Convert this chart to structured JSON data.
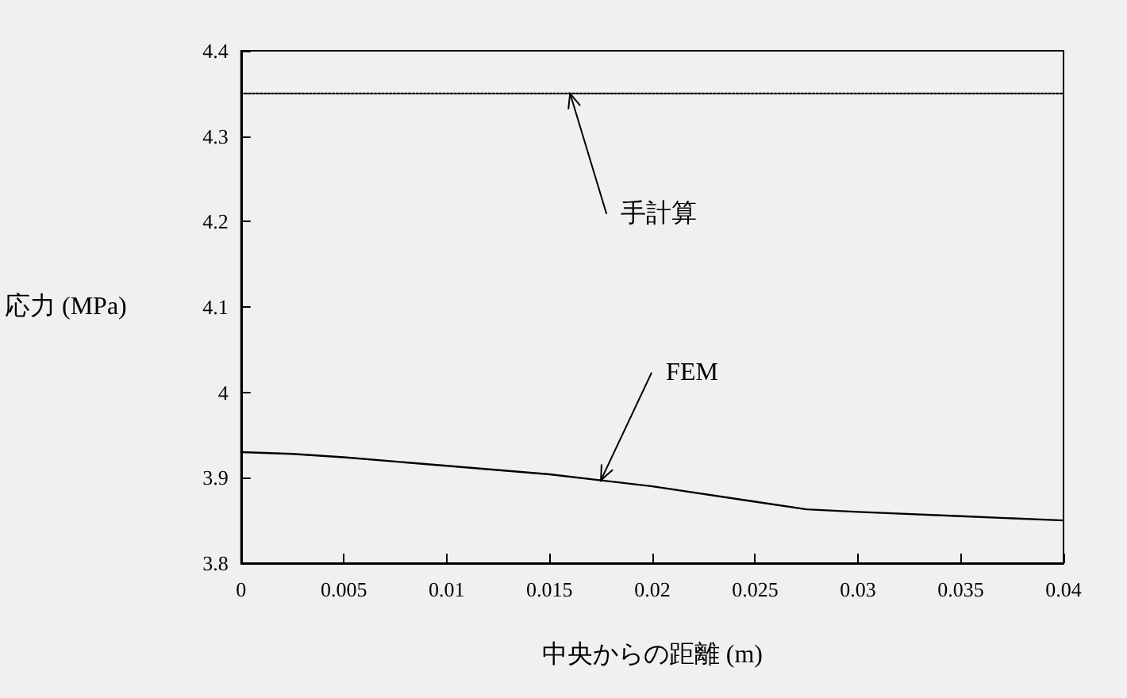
{
  "chart_data": {
    "type": "line",
    "xlabel": "中央からの距離 (m)",
    "ylabel": "応力 (MPa)",
    "xlim": [
      0,
      0.04
    ],
    "xticks": [
      0,
      0.005,
      0.01,
      0.015,
      0.02,
      0.025,
      0.03,
      0.035,
      0.04
    ],
    "ylim": [
      3.8,
      4.4
    ],
    "yticks": [
      3.8,
      3.9,
      4,
      4.1,
      4.2,
      4.3,
      4.4
    ],
    "series": [
      {
        "color": "#000000",
        "x": [
          0,
          0.0025,
          0.005,
          0.01,
          0.015,
          0.02,
          0.025,
          0.0275,
          0.03,
          0.035,
          0.04
        ],
        "values": [
          3.93,
          3.928,
          3.924,
          3.914,
          3.904,
          3.89,
          3.872,
          3.863,
          3.86,
          3.855,
          3.85
        ],
        "line_style": "solid"
      },
      {
        "color": "#000000",
        "x": [
          0,
          0.04
        ],
        "values": [
          4.35,
          4.35
        ],
        "line_style": "dotted"
      }
    ],
    "annotations": [
      {
        "text": "手計算",
        "x": 0.016,
        "y": 4.35
      },
      {
        "text": "FEM",
        "x": 0.0175,
        "y": 3.897
      }
    ],
    "grid": false,
    "marker": "none"
  }
}
